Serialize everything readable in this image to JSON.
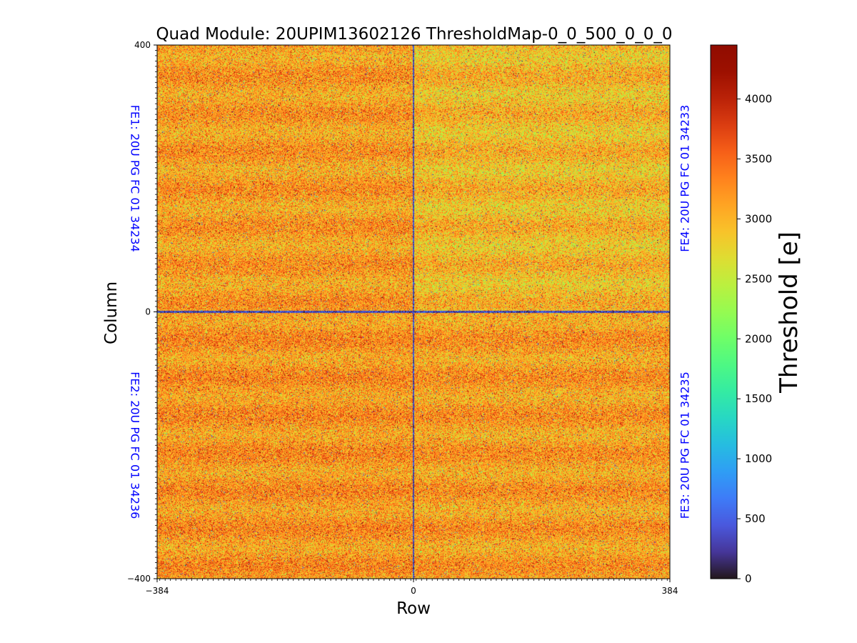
{
  "chart_data": {
    "type": "heatmap",
    "title": "Quad Module: 20UPIM13602126 ThresholdMap-0_0_500_0_0_0",
    "xlabel": "Row",
    "ylabel": "Column",
    "xlim": [
      -384,
      384
    ],
    "ylim": [
      -400,
      400
    ],
    "x_ticks": [
      {
        "value": -384,
        "label": "−384"
      },
      {
        "value": 0,
        "label": "0"
      },
      {
        "value": 384,
        "label": "384"
      }
    ],
    "y_ticks": [
      {
        "value": 400,
        "label": "400"
      },
      {
        "value": 0,
        "label": "0"
      },
      {
        "value": -400,
        "label": "−400"
      }
    ],
    "colorbar": {
      "label": "Threshold [e]",
      "range": [
        0,
        4450
      ],
      "colormap": "turbo",
      "ticks": [
        {
          "value": 0,
          "label": "0"
        },
        {
          "value": 500,
          "label": "500"
        },
        {
          "value": 1000,
          "label": "1000"
        },
        {
          "value": 1500,
          "label": "1500"
        },
        {
          "value": 2000,
          "label": "2000"
        },
        {
          "value": 2500,
          "label": "2500"
        },
        {
          "value": 3000,
          "label": "3000"
        },
        {
          "value": 3500,
          "label": "3500"
        },
        {
          "value": 4000,
          "label": "4000"
        }
      ]
    },
    "quadrants": [
      {
        "id": "FE1",
        "label": "FE1: 20U PG FC 01 34234",
        "x_range": [
          -384,
          0
        ],
        "y_range": [
          0,
          400
        ],
        "side": "left",
        "mean_threshold": 3150,
        "noise": 380
      },
      {
        "id": "FE4",
        "label": "FE4: 20U PG FC 01 34233",
        "x_range": [
          0,
          384
        ],
        "y_range": [
          0,
          400
        ],
        "side": "right",
        "mean_threshold": 2950,
        "noise": 380
      },
      {
        "id": "FE2",
        "label": "FE2: 20U PG FC 01 34236",
        "x_range": [
          -384,
          0
        ],
        "y_range": [
          -400,
          0
        ],
        "side": "left",
        "mean_threshold": 3200,
        "noise": 380
      },
      {
        "id": "FE3",
        "label": "FE3: 20U PG FC 01 34235",
        "x_range": [
          0,
          384
        ],
        "y_range": [
          -400,
          0
        ],
        "side": "right",
        "mean_threshold": 3150,
        "noise": 380
      }
    ],
    "label_color": "#0000ff"
  }
}
